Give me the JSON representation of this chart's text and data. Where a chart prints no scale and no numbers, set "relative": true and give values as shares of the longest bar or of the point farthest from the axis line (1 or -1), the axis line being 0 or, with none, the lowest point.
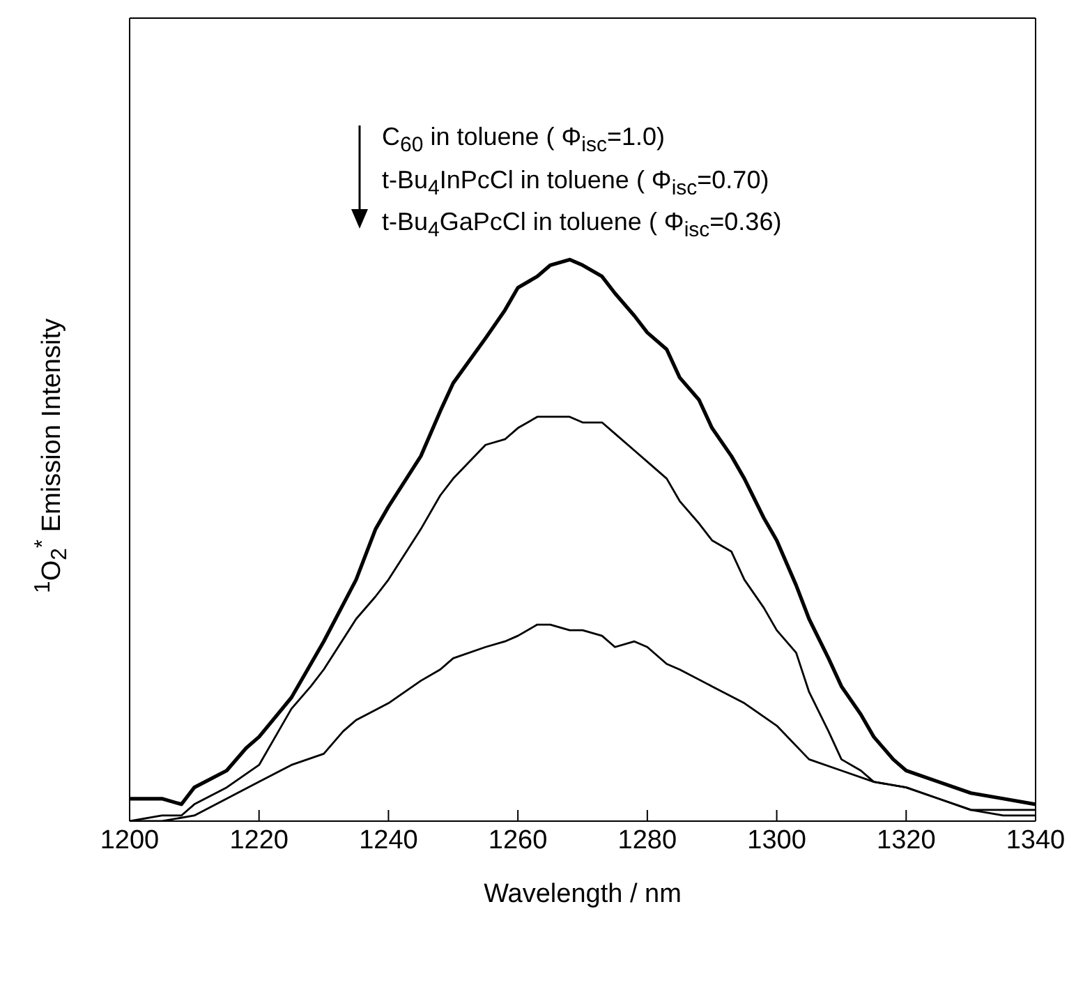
{
  "chart_data": {
    "type": "line",
    "relative": true,
    "xlabel": "Wavelength / nm",
    "ylabel": "$^{1}$O$_{2}$$^{*}$ Emission Intensity",
    "xlim": [
      1200,
      1340
    ],
    "xticks": [
      1200,
      1220,
      1240,
      1260,
      1280,
      1300,
      1320,
      1340
    ],
    "annotations": [
      "C$_{60}$ in toluene ( Φ$_{isc}$=1.0)",
      "t-Bu$_{4}$InPcCl in toluene ( Φ$_{isc}$=0.70)",
      "t-Bu$_{4}$GaPcCl in toluene ( Φ$_{isc}$=0.36)"
    ],
    "series": [
      {
        "color": "#000000",
        "x": [
          1200,
          1205,
          1208,
          1210,
          1215,
          1218,
          1220,
          1225,
          1228,
          1230,
          1235,
          1238,
          1240,
          1245,
          1248,
          1250,
          1255,
          1258,
          1260,
          1263,
          1265,
          1268,
          1270,
          1273,
          1275,
          1278,
          1280,
          1283,
          1285,
          1288,
          1290,
          1293,
          1295,
          1298,
          1300,
          1303,
          1305,
          1308,
          1310,
          1313,
          1315,
          1318,
          1320,
          1325,
          1330,
          1335,
          1340
        ],
        "values": [
          0.04,
          0.04,
          0.03,
          0.06,
          0.09,
          0.13,
          0.15,
          0.22,
          0.28,
          0.32,
          0.43,
          0.52,
          0.56,
          0.65,
          0.73,
          0.78,
          0.86,
          0.91,
          0.95,
          0.97,
          0.99,
          1.0,
          0.99,
          0.97,
          0.94,
          0.9,
          0.87,
          0.84,
          0.79,
          0.75,
          0.7,
          0.65,
          0.61,
          0.54,
          0.5,
          0.42,
          0.36,
          0.29,
          0.24,
          0.19,
          0.15,
          0.11,
          0.09,
          0.07,
          0.05,
          0.04,
          0.03
        ]
      },
      {
        "color": "#000000",
        "x": [
          1200,
          1205,
          1208,
          1210,
          1215,
          1220,
          1223,
          1225,
          1228,
          1230,
          1235,
          1238,
          1240,
          1245,
          1248,
          1250,
          1255,
          1258,
          1260,
          1263,
          1265,
          1268,
          1270,
          1273,
          1275,
          1278,
          1280,
          1283,
          1285,
          1288,
          1290,
          1293,
          1295,
          1298,
          1300,
          1303,
          1305,
          1308,
          1310,
          1313,
          1315,
          1320,
          1325,
          1330,
          1335,
          1340
        ],
        "values": [
          0.0,
          0.01,
          0.01,
          0.03,
          0.06,
          0.1,
          0.16,
          0.2,
          0.24,
          0.27,
          0.36,
          0.4,
          0.43,
          0.52,
          0.58,
          0.61,
          0.67,
          0.68,
          0.7,
          0.72,
          0.72,
          0.72,
          0.71,
          0.71,
          0.69,
          0.66,
          0.64,
          0.61,
          0.57,
          0.53,
          0.5,
          0.48,
          0.43,
          0.38,
          0.34,
          0.3,
          0.23,
          0.16,
          0.11,
          0.09,
          0.07,
          0.06,
          0.04,
          0.02,
          0.02,
          0.02
        ]
      },
      {
        "color": "#000000",
        "x": [
          1200,
          1205,
          1210,
          1215,
          1220,
          1225,
          1230,
          1233,
          1235,
          1240,
          1245,
          1248,
          1250,
          1255,
          1258,
          1260,
          1263,
          1265,
          1268,
          1270,
          1273,
          1275,
          1278,
          1280,
          1283,
          1285,
          1290,
          1295,
          1300,
          1305,
          1310,
          1315,
          1320,
          1325,
          1330,
          1335,
          1340
        ],
        "values": [
          0.0,
          0.0,
          0.01,
          0.04,
          0.07,
          0.1,
          0.12,
          0.16,
          0.18,
          0.21,
          0.25,
          0.27,
          0.29,
          0.31,
          0.32,
          0.33,
          0.35,
          0.35,
          0.34,
          0.34,
          0.33,
          0.31,
          0.32,
          0.31,
          0.28,
          0.27,
          0.24,
          0.21,
          0.17,
          0.11,
          0.09,
          0.07,
          0.06,
          0.04,
          0.02,
          0.01,
          0.01
        ]
      }
    ]
  }
}
